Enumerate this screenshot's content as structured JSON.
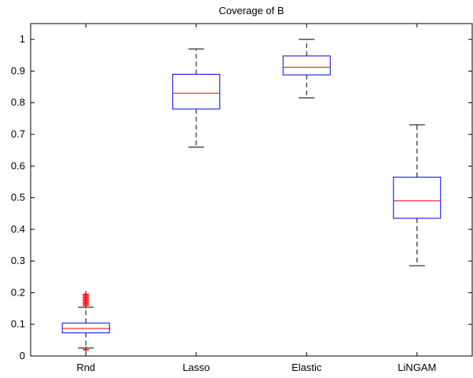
{
  "chart_data": {
    "type": "boxplot",
    "title": "Coverage of B",
    "xlabel": "",
    "ylabel": "",
    "ylim": [
      0,
      1.05
    ],
    "yticks": [
      0,
      0.1,
      0.2,
      0.3,
      0.4,
      0.5,
      0.6,
      0.7,
      0.8,
      0.9,
      1
    ],
    "ytick_labels": [
      "0",
      "0.1",
      "0.2",
      "0.3",
      "0.4",
      "0.5",
      "0.6",
      "0.7",
      "0.8",
      "0.9",
      "1"
    ],
    "categories": [
      "Rnd",
      "Lasso",
      "Elastic",
      "LiNGAM"
    ],
    "boxes": [
      {
        "label": "Rnd",
        "whisker_low": 0.025,
        "q1": 0.073,
        "median": 0.087,
        "q3": 0.104,
        "whisker_high": 0.154,
        "outliers": [
          0.02,
          0.16,
          0.165,
          0.17,
          0.175,
          0.18,
          0.185,
          0.19,
          0.195
        ]
      },
      {
        "label": "Lasso",
        "whisker_low": 0.66,
        "q1": 0.78,
        "median": 0.83,
        "q3": 0.89,
        "whisker_high": 0.97,
        "outliers": []
      },
      {
        "label": "Elastic",
        "whisker_low": 0.815,
        "q1": 0.888,
        "median": 0.912,
        "q3": 0.948,
        "whisker_high": 1.0,
        "outliers": []
      },
      {
        "label": "LiNGAM",
        "whisker_low": 0.285,
        "q1": 0.435,
        "median": 0.49,
        "q3": 0.565,
        "whisker_high": 0.73,
        "outliers": []
      }
    ],
    "colors": {
      "box": "#0000ff",
      "median": "#ff0000",
      "whisker": "#000000",
      "outlier": "#ff0000",
      "axis": "#000000"
    },
    "grid": false,
    "legend": "none"
  }
}
